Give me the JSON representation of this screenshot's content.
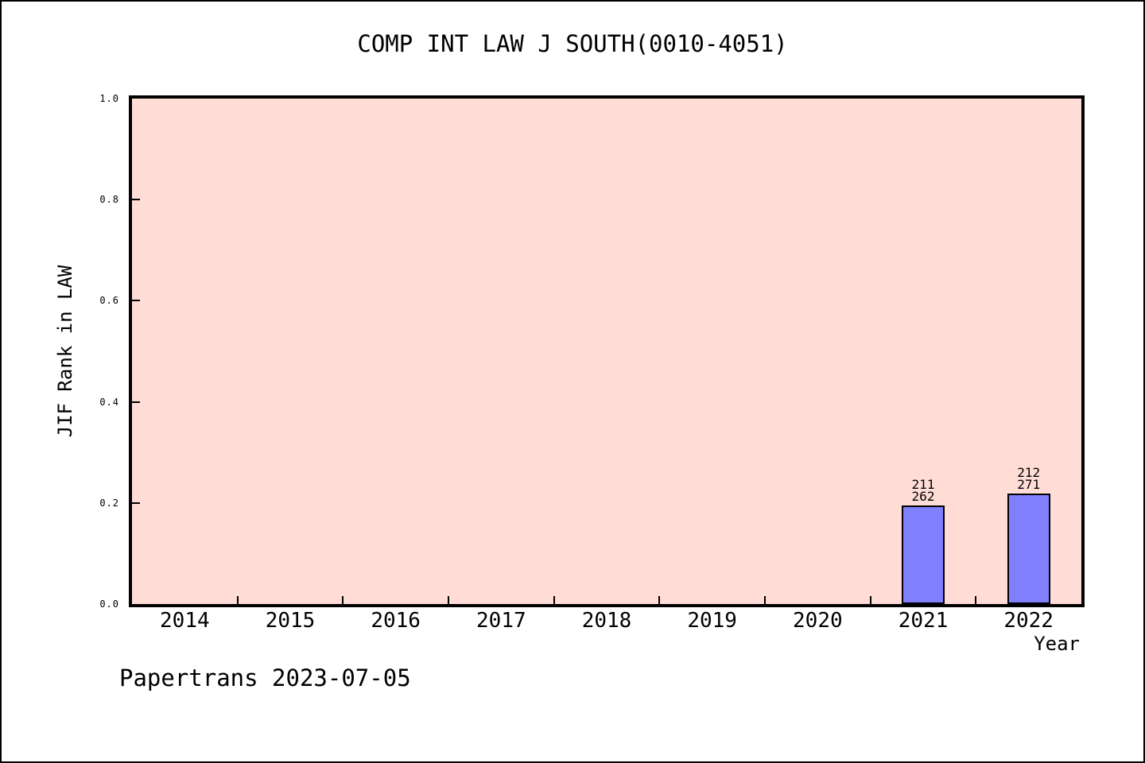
{
  "title": "COMP INT LAW J SOUTH(0010-4051)",
  "footer": "Papertrans 2023-07-05",
  "chart_data": {
    "type": "bar",
    "title": "COMP INT LAW J SOUTH(0010-4051)",
    "xlabel": "Year",
    "ylabel": "JIF Rank in LAW",
    "categories": [
      "2014",
      "2015",
      "2016",
      "2017",
      "2018",
      "2019",
      "2020",
      "2021",
      "2022"
    ],
    "bars": [
      {
        "category": "2021",
        "rank": 211,
        "total": 262,
        "value": 0.195,
        "label": "211\n262"
      },
      {
        "category": "2022",
        "rank": 212,
        "total": 271,
        "value": 0.218,
        "label": "212\n271"
      }
    ],
    "ylim": [
      0.0,
      1.0
    ],
    "yticks": [
      0.0,
      0.2,
      0.4,
      0.6,
      0.8,
      1.0
    ],
    "ytick_labels": [
      "0.0",
      "0.2",
      "0.4",
      "0.6",
      "0.8",
      "1.0"
    ],
    "grid": false,
    "legend_position": "none",
    "annotation": "Papertrans 2023-07-05",
    "colors": {
      "plot_bg": "#ffdcd5",
      "bar_fill": "#8080ff",
      "bar_edge": "#000000",
      "axis": "#000000",
      "text": "#000000",
      "figure_bg": "#ffffff"
    }
  }
}
